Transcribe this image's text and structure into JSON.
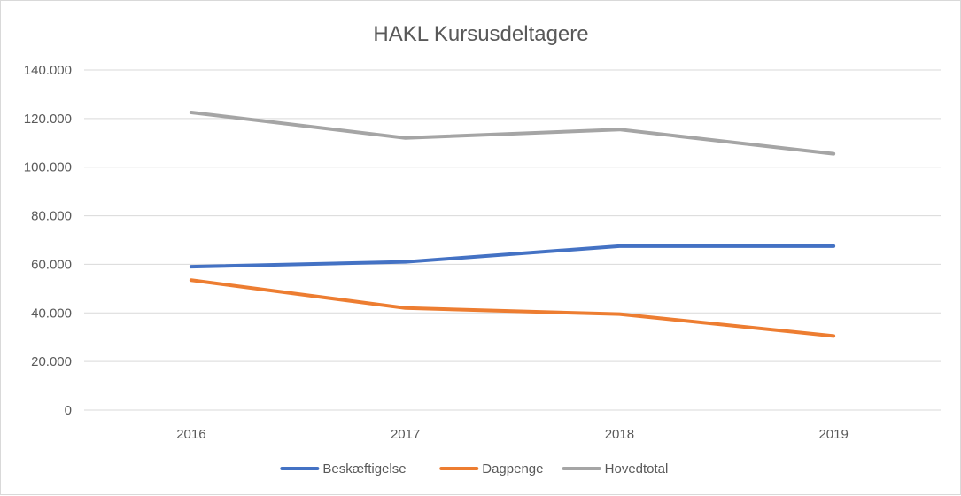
{
  "chart_data": {
    "type": "line",
    "title": "HAKL Kursusdeltagere",
    "categories": [
      "2016",
      "2017",
      "2018",
      "2019"
    ],
    "ylim": [
      0,
      140000
    ],
    "y_ticks": [
      0,
      20000,
      40000,
      60000,
      80000,
      100000,
      120000,
      140000
    ],
    "y_tick_labels": [
      "0",
      "20.000",
      "40.000",
      "60.000",
      "80.000",
      "100.000",
      "120.000",
      "140.000"
    ],
    "grid": true,
    "legend_position": "bottom",
    "series": [
      {
        "name": "Beskæftigelse",
        "color": "#4472c4",
        "values": [
          59000,
          61000,
          67500,
          67500
        ]
      },
      {
        "name": "Dagpenge",
        "color": "#ed7d31",
        "values": [
          53500,
          42000,
          39500,
          30500
        ]
      },
      {
        "name": "Hovedtotal",
        "color": "#a5a5a5",
        "values": [
          122500,
          112000,
          115500,
          105500
        ]
      }
    ]
  }
}
